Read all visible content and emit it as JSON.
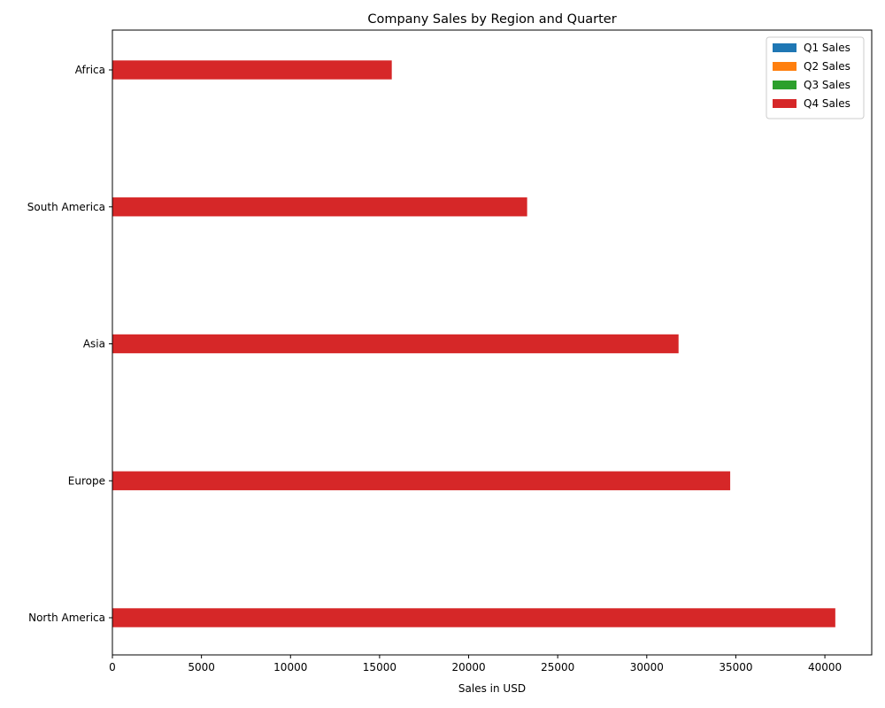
{
  "chart_data": {
    "type": "bar",
    "orientation": "horizontal",
    "title": "Company Sales by Region and Quarter",
    "xlabel": "Sales in USD",
    "ylabel": "",
    "categories": [
      "North America",
      "Europe",
      "Asia",
      "South America",
      "Africa"
    ],
    "series": [
      {
        "name": "Q1 Sales",
        "color": "#1f77b4",
        "values": [
          40600,
          34700,
          31800,
          23300,
          15700
        ]
      },
      {
        "name": "Q2 Sales",
        "color": "#ff7f0e",
        "values": [
          40600,
          34700,
          31800,
          23300,
          15700
        ]
      },
      {
        "name": "Q3 Sales",
        "color": "#2ca02c",
        "values": [
          40600,
          34700,
          31800,
          23300,
          15700
        ]
      },
      {
        "name": "Q4 Sales",
        "color": "#d62728",
        "values": [
          40600,
          34700,
          31800,
          23300,
          15700
        ]
      }
    ],
    "xlim": [
      0,
      42630
    ],
    "xticks": [
      0,
      5000,
      10000,
      15000,
      20000,
      25000,
      30000,
      35000,
      40000
    ],
    "grid": false,
    "legend_position": "top-right"
  }
}
